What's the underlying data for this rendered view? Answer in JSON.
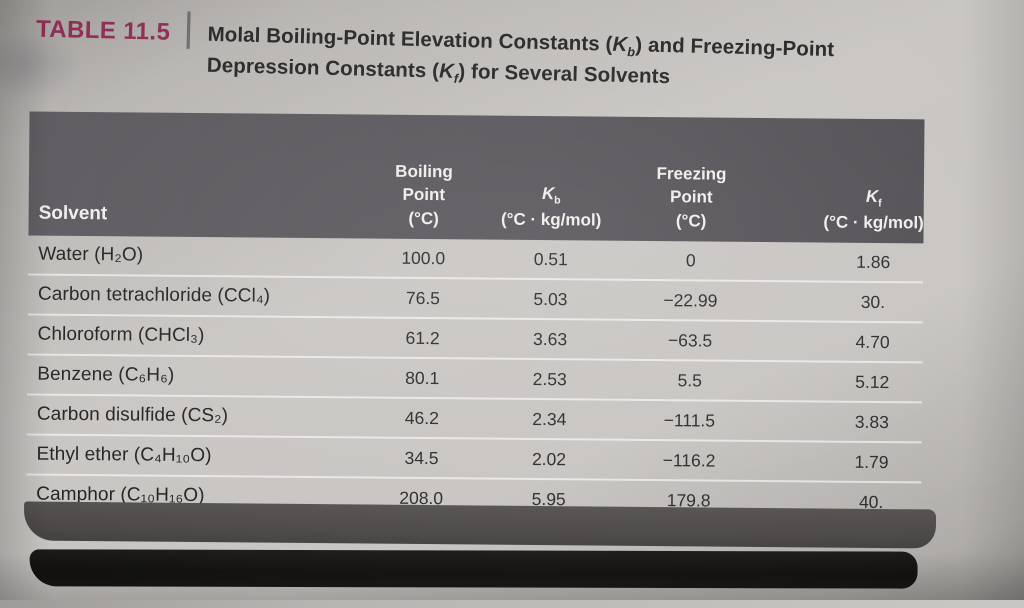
{
  "title": {
    "label": "TABLE 11.5",
    "divider": "|",
    "seg1": "Molal Boiling-Point Elevation Constants (",
    "k1": "K",
    "k1_sub": "b",
    "seg2": ") and Freezing-Point Depression Constants (",
    "k2": "K",
    "k2_sub": "f",
    "seg3": ") for Several Solvents"
  },
  "table": {
    "header": {
      "solvent": "Solvent",
      "boiling_l1": "Boiling",
      "boiling_l2": "Point",
      "boiling_l3": "(°C)",
      "kb_main": "K",
      "kb_sub": "b",
      "kb_unit": "(°C · kg/mol)",
      "freezing_l1": "Freezing",
      "freezing_l2": "Point",
      "freezing_l3": "(°C)",
      "kf_main": "K",
      "kf_sub": "f",
      "kf_unit": "(°C · kg/mol)"
    },
    "rows": [
      {
        "solvent": "Water (H₂O)",
        "bp": "100.0",
        "kb": "0.51",
        "fp": "0",
        "kf": "1.86"
      },
      {
        "solvent": "Carbon tetrachloride (CCl₄)",
        "bp": "76.5",
        "kb": "5.03",
        "fp": "−22.99",
        "kf": "30."
      },
      {
        "solvent": "Chloroform (CHCl₃)",
        "bp": "61.2",
        "kb": "3.63",
        "fp": "−63.5",
        "kf": "4.70"
      },
      {
        "solvent": "Benzene (C₆H₆)",
        "bp": "80.1",
        "kb": "2.53",
        "fp": "5.5",
        "kf": "5.12"
      },
      {
        "solvent": "Carbon disulfide (CS₂)",
        "bp": "46.2",
        "kb": "2.34",
        "fp": "−111.5",
        "kf": "3.83"
      },
      {
        "solvent": "Ethyl ether (C₄H₁₀O)",
        "bp": "34.5",
        "kb": "2.02",
        "fp": "−116.2",
        "kf": "1.79"
      },
      {
        "solvent": "Camphor (C₁₀H₁₆O)",
        "bp": "208.0",
        "kb": "5.95",
        "fp": "179.8",
        "kf": "40."
      }
    ]
  },
  "colors": {
    "accent_maroon": "#8e2a52",
    "header_band": "#58555a",
    "body_text": "#232221",
    "row_separator": "#dcd9d6",
    "footer_bar": "#4a4746",
    "book_edge": "#141210",
    "page_gray": "#c4c1be"
  }
}
